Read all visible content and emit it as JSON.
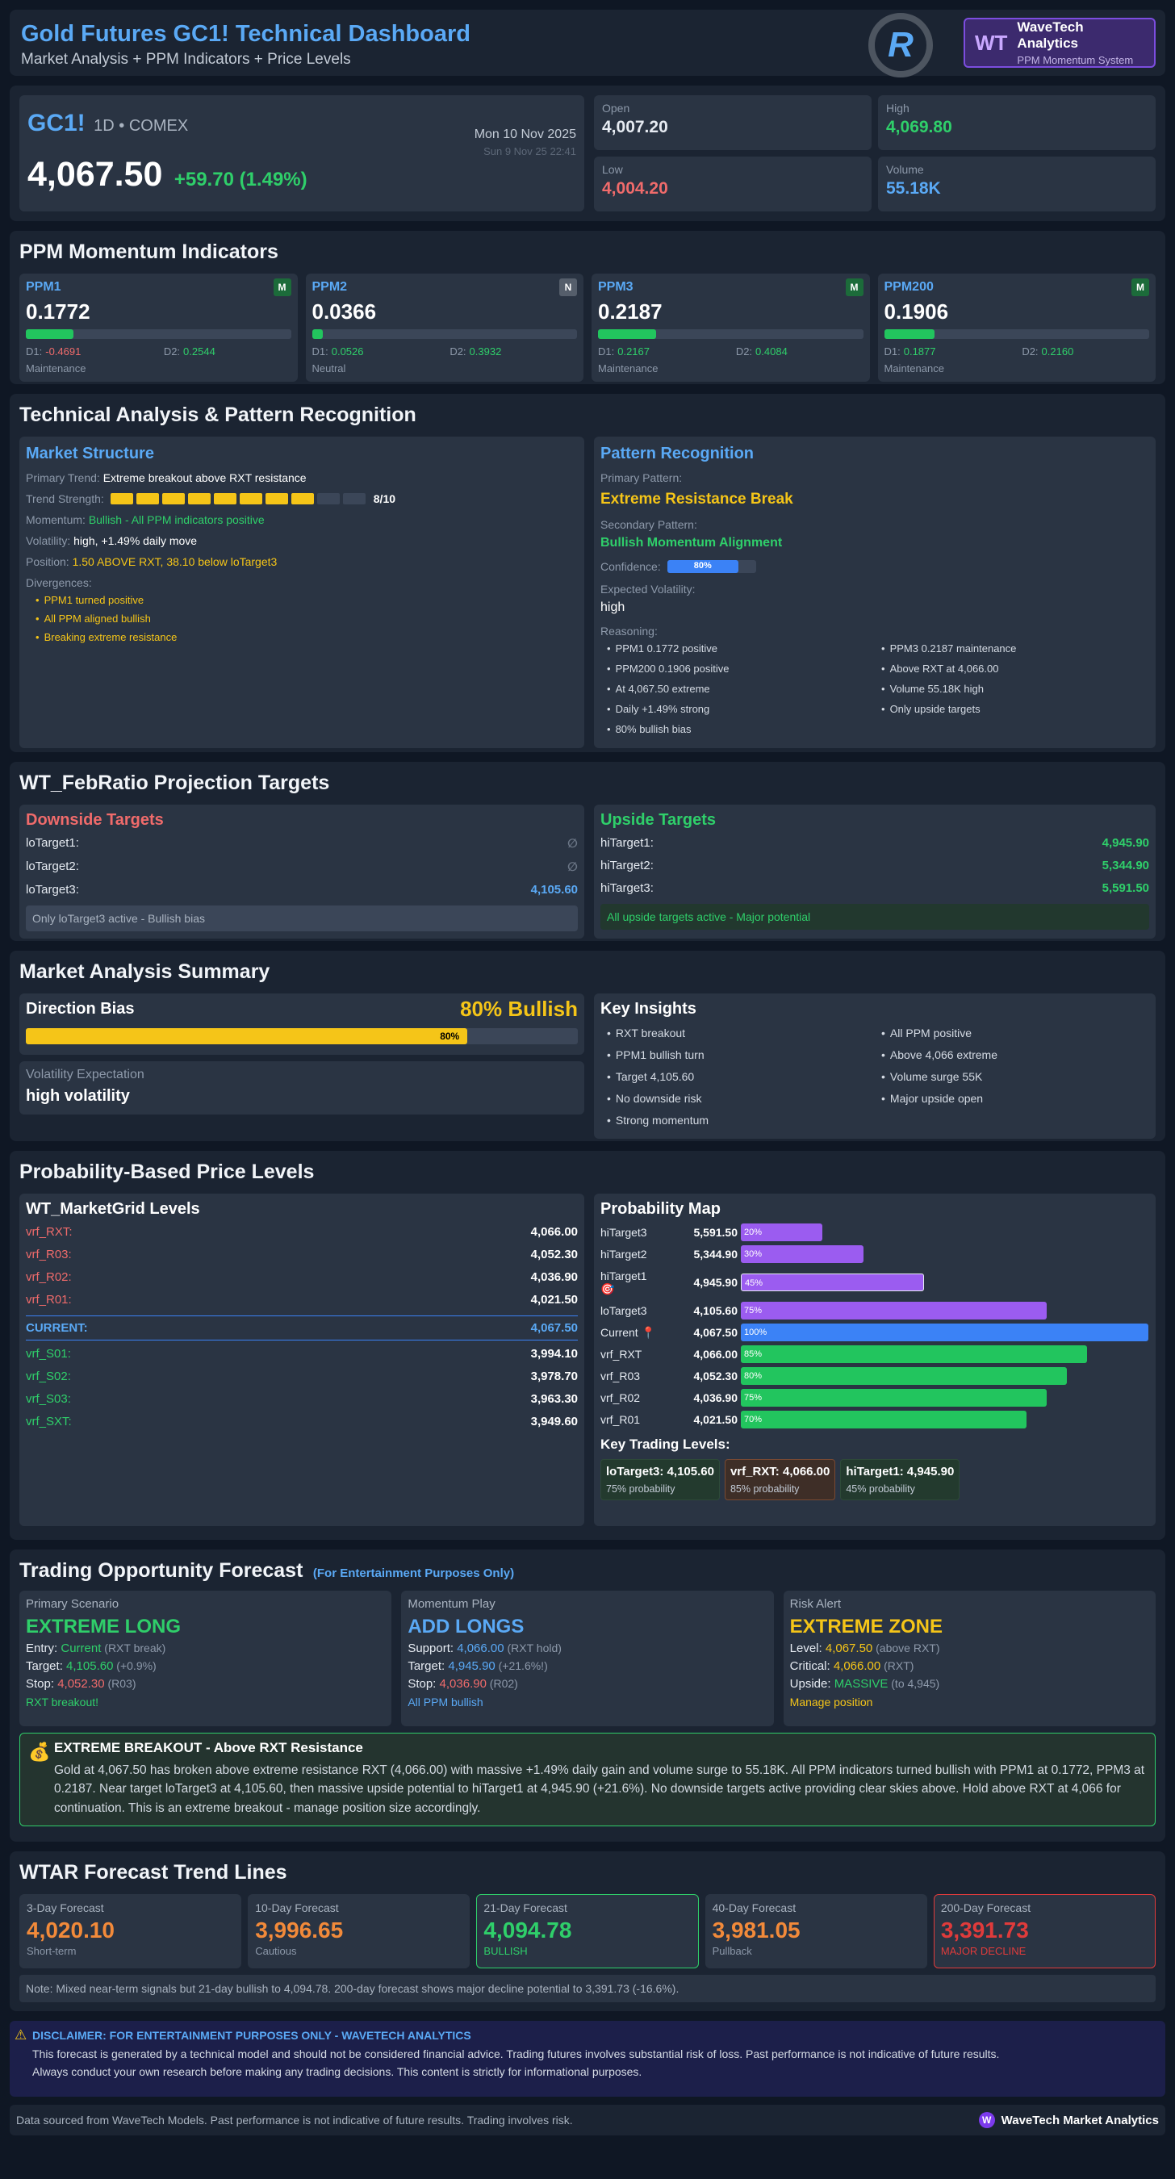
{
  "header": {
    "title": "Gold Futures GC1! Technical Dashboard",
    "subtitle": "Market Analysis + PPM Indicators + Price Levels",
    "logo_letter": "R",
    "brand_badge": "WT",
    "brand_name": "WaveTech Analytics",
    "brand_sub": "PPM Momentum System"
  },
  "quote": {
    "symbol": "GC1!",
    "meta": "1D • COMEX",
    "date": "Mon 10 Nov 2025",
    "date2": "Sun 9 Nov 25 22:41",
    "price": "4,067.50",
    "change": "+59.70 (1.49%)",
    "stats": [
      {
        "label": "Open",
        "value": "4,007.20",
        "color": "#e6ebf2"
      },
      {
        "label": "High",
        "value": "4,069.80",
        "color": "#2fcf6a"
      },
      {
        "label": "Low",
        "value": "4,004.20",
        "color": "#f06b6b"
      },
      {
        "label": "Volume",
        "value": "55.18K",
        "color": "#5aa9f5"
      }
    ]
  },
  "ppm": {
    "title": "PPM Momentum Indicators",
    "cards": [
      {
        "name": "PPM1",
        "badge": "M",
        "badge_color": "#1c6b3a",
        "value": "0.1772",
        "progress": 0.18,
        "d1_label": "D1:",
        "d1": "-0.4691",
        "d1_color": "#f06b6b",
        "d2_label": "D2:",
        "d2": "0.2544",
        "d2_color": "#2fcf6a",
        "status": "Maintenance"
      },
      {
        "name": "PPM2",
        "badge": "N",
        "badge_color": "#555e6b",
        "value": "0.0366",
        "progress": 0.04,
        "d1_label": "D1:",
        "d1": "0.0526",
        "d1_color": "#2fcf6a",
        "d2_label": "D2:",
        "d2": "0.3932",
        "d2_color": "#2fcf6a",
        "status": "Neutral"
      },
      {
        "name": "PPM3",
        "badge": "M",
        "badge_color": "#1c6b3a",
        "value": "0.2187",
        "progress": 0.22,
        "d1_label": "D1:",
        "d1": "0.2167",
        "d1_color": "#2fcf6a",
        "d2_label": "D2:",
        "d2": "0.4084",
        "d2_color": "#2fcf6a",
        "status": "Maintenance"
      },
      {
        "name": "PPM200",
        "badge": "M",
        "badge_color": "#1c6b3a",
        "value": "0.1906",
        "progress": 0.19,
        "d1_label": "D1:",
        "d1": "0.1877",
        "d1_color": "#2fcf6a",
        "d2_label": "D2:",
        "d2": "0.2160",
        "d2_color": "#2fcf6a",
        "status": "Maintenance"
      }
    ]
  },
  "ta": {
    "title": "Technical Analysis & Pattern Recognition",
    "ms": {
      "title": "Market Structure",
      "trend_label": "Primary Trend:",
      "trend": "Extreme breakout above RXT resistance",
      "strength_label": "Trend Strength:",
      "strength": 8,
      "strength_max": 10,
      "strength_text": "8/10",
      "momentum_label": "Momentum:",
      "momentum": "Bullish - All PPM indicators positive",
      "vol_label": "Volatility:",
      "vol": "high, +1.49% daily move",
      "pos_label": "Position:",
      "pos": "1.50 ABOVE RXT, 38.10 below loTarget3",
      "div_label": "Divergences:",
      "divs": [
        "PPM1 turned positive",
        "All PPM aligned bullish",
        "Breaking extreme resistance"
      ]
    },
    "pr": {
      "title": "Pattern Recognition",
      "primary_label": "Primary Pattern:",
      "primary": "Extreme Resistance Break",
      "secondary_label": "Secondary Pattern:",
      "secondary": "Bullish Momentum Alignment",
      "conf_label": "Confidence:",
      "confidence": 0.8,
      "conf_text": "80%",
      "ev_label": "Expected Volatility:",
      "ev": "high",
      "reason_label": "Reasoning:",
      "reasons_left": [
        "PPM1 0.1772 positive",
        "PPM200 0.1906 positive",
        "At 4,067.50 extreme",
        "Daily +1.49% strong",
        "80% bullish bias"
      ],
      "reasons_right": [
        "PPM3 0.2187 maintenance",
        "Above RXT at 4,066.00",
        "Volume 55.18K high",
        "Only upside targets"
      ]
    }
  },
  "fr": {
    "title": "WT_FebRatio Projection Targets",
    "down": {
      "title": "Downside Targets",
      "rows": [
        {
          "label": "loTarget1:",
          "value": "∅"
        },
        {
          "label": "loTarget2:",
          "value": "∅"
        },
        {
          "label": "loTarget3:",
          "value": "4,105.60"
        }
      ],
      "note": "Only loTarget3 active - Bullish bias"
    },
    "up": {
      "title": "Upside Targets",
      "rows": [
        {
          "label": "hiTarget1:",
          "value": "4,945.90"
        },
        {
          "label": "hiTarget2:",
          "value": "5,344.90"
        },
        {
          "label": "hiTarget3:",
          "value": "5,591.50"
        }
      ],
      "note": "All upside targets active - Major potential"
    }
  },
  "mas": {
    "title": "Market Analysis Summary",
    "dir_label": "Direction Bias",
    "dir_value": "80% Bullish",
    "dir_progress": 0.8,
    "dir_text": "80%",
    "vol_label": "Volatility Expectation",
    "vol_value": "high volatility",
    "insights_title": "Key Insights",
    "insights_left": [
      "RXT breakout",
      "PPM1 bullish turn",
      "Target 4,105.60",
      "No downside risk",
      "Strong momentum"
    ],
    "insights_right": [
      "All PPM positive",
      "Above 4,066 extreme",
      "Volume surge 55K",
      "Major upside open"
    ]
  },
  "pbl": {
    "title": "Probability-Based Price Levels",
    "grid": {
      "title": "WT_MarketGrid Levels",
      "rows": [
        {
          "label": "vrf_RXT:",
          "value": "4,066.00",
          "color": "#f06b6b"
        },
        {
          "label": "vrf_R03:",
          "value": "4,052.30",
          "color": "#f06b6b"
        },
        {
          "label": "vrf_R02:",
          "value": "4,036.90",
          "color": "#f06b6b"
        },
        {
          "label": "vrf_R01:",
          "value": "4,021.50",
          "color": "#f06b6b"
        },
        {
          "label": "CURRENT:",
          "value": "4,067.50",
          "color": "#5aa9f5",
          "current": true
        },
        {
          "label": "vrf_S01:",
          "value": "3,994.10",
          "color": "#2fcf6a"
        },
        {
          "label": "vrf_S02:",
          "value": "3,978.70",
          "color": "#2fcf6a"
        },
        {
          "label": "vrf_S03:",
          "value": "3,963.30",
          "color": "#2fcf6a"
        },
        {
          "label": "vrf_SXT:",
          "value": "3,949.60",
          "color": "#2fcf6a"
        }
      ]
    },
    "map": {
      "title": "Probability Map",
      "rows": [
        {
          "label": "hiTarget3",
          "value": "5,591.50",
          "prob": 0.2,
          "text": "20%",
          "color": "#9b5cf0"
        },
        {
          "label": "hiTarget2",
          "value": "5,344.90",
          "prob": 0.3,
          "text": "30%",
          "color": "#9b5cf0"
        },
        {
          "label": "hiTarget1",
          "icon": "🎯",
          "value": "4,945.90",
          "prob": 0.45,
          "text": "45%",
          "color": "#9b5cf0"
        },
        {
          "label": "loTarget3",
          "value": "4,105.60",
          "prob": 0.75,
          "text": "75%",
          "color": "#9b5cf0"
        },
        {
          "label": "Current 📍",
          "value": "4,067.50",
          "prob": 1.0,
          "text": "100%",
          "color": "#3b82f6"
        },
        {
          "label": "vrf_RXT",
          "value": "4,066.00",
          "prob": 0.85,
          "text": "85%",
          "color": "#22c55e"
        },
        {
          "label": "vrf_R03",
          "value": "4,052.30",
          "prob": 0.8,
          "text": "80%",
          "color": "#22c55e"
        },
        {
          "label": "vrf_R02",
          "value": "4,036.90",
          "prob": 0.75,
          "text": "75%",
          "color": "#22c55e"
        },
        {
          "label": "vrf_R01",
          "value": "4,021.50",
          "prob": 0.7,
          "text": "70%",
          "color": "#22c55e"
        }
      ],
      "ktl_title": "Key Trading Levels:",
      "ktl": [
        {
          "name": "loTarget3: 4,105.60",
          "prob": "75% probability",
          "bg": "#233a2e",
          "border": "#2d4a38"
        },
        {
          "name": "vrf_RXT: 4,066.00",
          "prob": "85% probability",
          "bg": "#3e2e27",
          "border": "#7a4a32"
        },
        {
          "name": "hiTarget1: 4,945.90",
          "prob": "45% probability",
          "bg": "#233a2e",
          "border": "#2d4a38"
        }
      ]
    }
  },
  "tof": {
    "title": "Trading Opportunity Forecast",
    "tag": "(For Entertainment Purposes Only)",
    "cards": [
      {
        "label": "Primary Scenario",
        "headline": "EXTREME LONG",
        "hcolor": "#2fcf6a",
        "lines": [
          {
            "k": "Entry: ",
            "v": "Current",
            "vc": "#2fcf6a",
            "n": " (RXT break)"
          },
          {
            "k": "Target: ",
            "v": "4,105.60",
            "vc": "#2fcf6a",
            "n": " (+0.9%)"
          },
          {
            "k": "Stop: ",
            "v": "4,052.30",
            "vc": "#f06b6b",
            "n": " (R03)"
          }
        ],
        "footer": "RXT breakout!",
        "fcolor": "#2fcf6a"
      },
      {
        "label": "Momentum Play",
        "headline": "ADD LONGS",
        "hcolor": "#5aa9f5",
        "lines": [
          {
            "k": "Support: ",
            "v": "4,066.00",
            "vc": "#5aa9f5",
            "n": " (RXT hold)"
          },
          {
            "k": "Target: ",
            "v": "4,945.90",
            "vc": "#5aa9f5",
            "n": " (+21.6%!)"
          },
          {
            "k": "Stop: ",
            "v": "4,036.90",
            "vc": "#f06b6b",
            "n": " (R02)"
          }
        ],
        "footer": "All PPM bullish",
        "fcolor": "#5aa9f5"
      },
      {
        "label": "Risk Alert",
        "headline": "EXTREME ZONE",
        "hcolor": "#f5c518",
        "lines": [
          {
            "k": "Level: ",
            "v": "4,067.50",
            "vc": "#f5c518",
            "n": " (above RXT)"
          },
          {
            "k": "Critical: ",
            "v": "4,066.00",
            "vc": "#f5c518",
            "n": " (RXT)"
          },
          {
            "k": "Upside: ",
            "v": "MASSIVE",
            "vc": "#2fcf6a",
            "n": " (to 4,945)"
          }
        ],
        "footer": "Manage position",
        "fcolor": "#f5c518"
      }
    ],
    "alert_icon": "💰",
    "alert_title": "EXTREME BREAKOUT - Above RXT Resistance",
    "alert_body": "Gold at 4,067.50 has broken above extreme resistance RXT (4,066.00) with massive +1.49% daily gain and volume surge to 55.18K. All PPM indicators turned bullish with PPM1 at 0.1772, PPM3 at 0.2187. Near target loTarget3 at 4,105.60, then massive upside potential to hiTarget1 at 4,945.90 (+21.6%). No downside targets active providing clear skies above. Hold above RXT at 4,066 for continuation. This is an extreme breakout - manage position size accordingly."
  },
  "wtar": {
    "title": "WTAR Forecast Trend Lines",
    "cards": [
      {
        "label": "3-Day Forecast",
        "value": "4,020.10",
        "vcolor": "#f28a3a",
        "note": "Short-term",
        "ncolor": "#8d99aa",
        "border": "transparent"
      },
      {
        "label": "10-Day Forecast",
        "value": "3,996.65",
        "vcolor": "#f28a3a",
        "note": "Cautious",
        "ncolor": "#8d99aa",
        "border": "transparent"
      },
      {
        "label": "21-Day Forecast",
        "value": "4,094.78",
        "vcolor": "#2fcf6a",
        "note": "BULLISH",
        "ncolor": "#2fcf6a",
        "border": "#2fcf6a"
      },
      {
        "label": "40-Day Forecast",
        "value": "3,981.05",
        "vcolor": "#f28a3a",
        "note": "Pullback",
        "ncolor": "#8d99aa",
        "border": "transparent"
      },
      {
        "label": "200-Day Forecast",
        "value": "3,391.73",
        "vcolor": "#e03b3b",
        "note": "MAJOR DECLINE",
        "ncolor": "#e03b3b",
        "border": "#e03b3b"
      }
    ],
    "note": "Note: Mixed near-term signals but 21-day bullish to 4,094.78. 200-day forecast shows major decline potential to 3,391.73 (-16.6%)."
  },
  "disclaimer": {
    "icon": "⚠",
    "title": "DISCLAIMER: FOR ENTERTAINMENT PURPOSES ONLY - WAVETECH ANALYTICS",
    "body1": "This forecast is generated by a technical model and should not be considered financial advice. Trading futures involves substantial risk of loss. Past performance is not indicative of future results.",
    "body2": "Always conduct your own research before making any trading decisions. This content is strictly for informational purposes."
  },
  "footer": {
    "text": "Data sourced from WaveTech Models. Past performance is not indicative of future results. Trading involves risk.",
    "badge": "W",
    "brand": "WaveTech Market Analytics"
  }
}
